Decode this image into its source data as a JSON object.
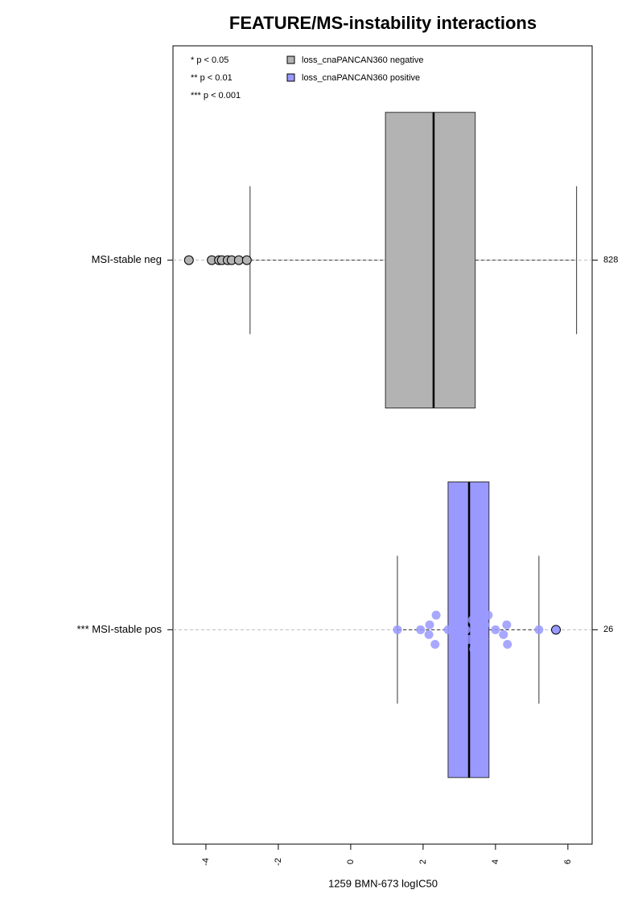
{
  "chart_data": {
    "type": "boxplot",
    "title": "FEATURE/MS-instability interactions",
    "x_label": "1259 BMN-673 logIC50",
    "xlim": [
      -4.91,
      6.67
    ],
    "xticks": [
      -4,
      -2,
      0,
      2,
      4,
      6
    ],
    "categories": [
      "MSI-stable neg",
      "*** MSI-stable pos"
    ],
    "counts": [
      828,
      26
    ],
    "notes": [
      "* p < 0.05",
      "** p < 0.01",
      "*** p < 0.001"
    ],
    "series": [
      {
        "name": "loss_cnaPANCAN360 negative",
        "color": "#b3b3b3",
        "q1": 0.96,
        "median": 2.29,
        "q3": 3.44,
        "whisker_low": -2.78,
        "whisker_high": 6.24,
        "outliers": [
          -4.47,
          -3.84,
          -3.64,
          -3.56,
          -3.4,
          -3.29,
          -3.09,
          -2.87
        ],
        "points": []
      },
      {
        "name": "loss_cnaPANCAN360 positive",
        "color": "#9999ff",
        "q1": 2.69,
        "median": 3.27,
        "q3": 3.82,
        "whisker_low": 1.29,
        "whisker_high": 5.2,
        "outliers": [
          5.67
        ],
        "points": [
          1.29,
          1.93,
          2.16,
          2.33,
          2.18,
          2.36,
          2.69,
          2.89,
          2.96,
          2.93,
          3.02,
          3.04,
          3.18,
          3.27,
          3.36,
          3.4,
          3.49,
          3.71,
          3.69,
          3.8,
          4.0,
          4.22,
          4.31,
          4.33,
          5.2
        ]
      }
    ]
  }
}
